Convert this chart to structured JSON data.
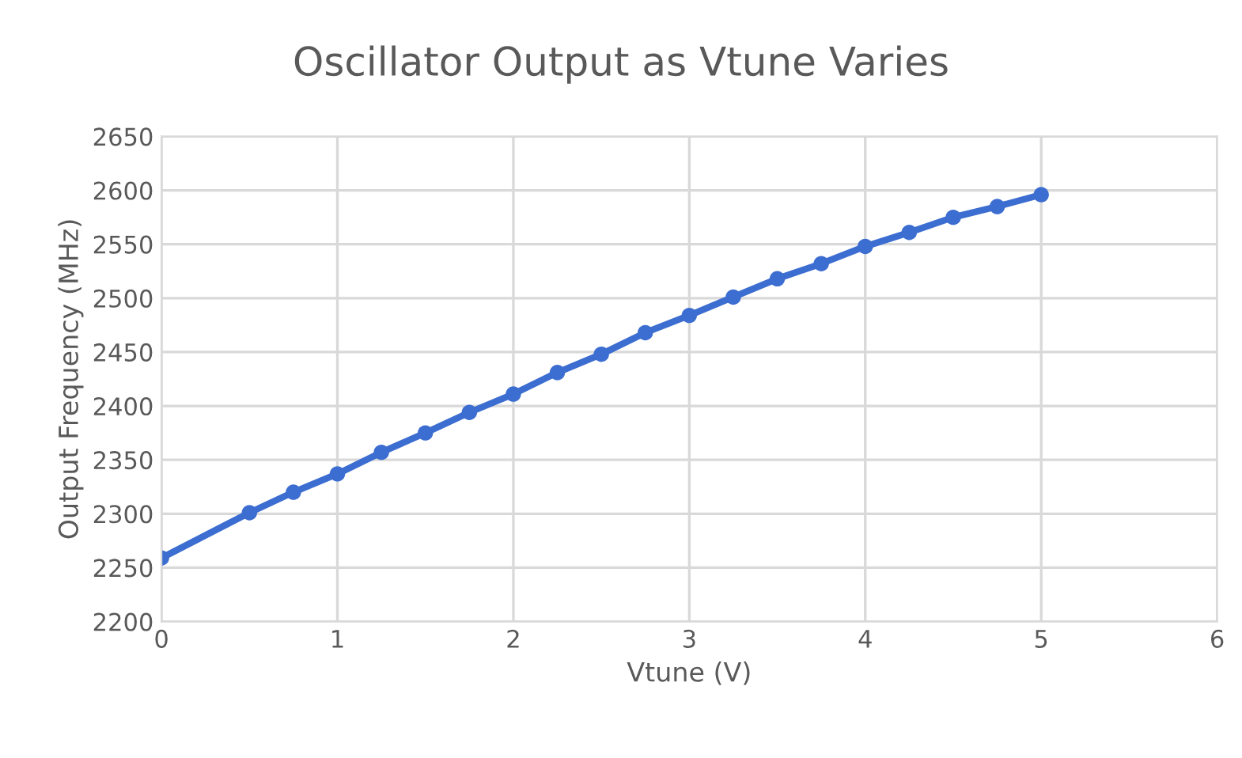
{
  "chart_data": {
    "type": "line",
    "title": "Oscillator Output as Vtune Varies",
    "xlabel": "Vtune (V)",
    "ylabel": "Output Frequency (MHz)",
    "series": [
      {
        "color": "#3c6dd0",
        "x": [
          0,
          0.5,
          0.75,
          1,
          1.25,
          1.5,
          1.75,
          2,
          2.25,
          2.5,
          2.75,
          3,
          3.25,
          3.5,
          3.75,
          4,
          4.25,
          4.5,
          4.75,
          5
        ],
        "values": [
          2259,
          2301,
          2320,
          2337,
          2357,
          2375,
          2394,
          2411,
          2431,
          2448,
          2468,
          2484,
          2501,
          2518,
          2532,
          2548,
          2561,
          2575,
          2585,
          2596
        ]
      }
    ],
    "xlim": [
      0,
      6
    ],
    "xticks": [
      0,
      1,
      2,
      3,
      4,
      5,
      6
    ],
    "ylim": [
      2200,
      2650
    ],
    "yticks": [
      2200,
      2250,
      2300,
      2350,
      2400,
      2450,
      2500,
      2550,
      2600,
      2650
    ],
    "grid": true,
    "marker": "circle",
    "line_style": "solid"
  }
}
